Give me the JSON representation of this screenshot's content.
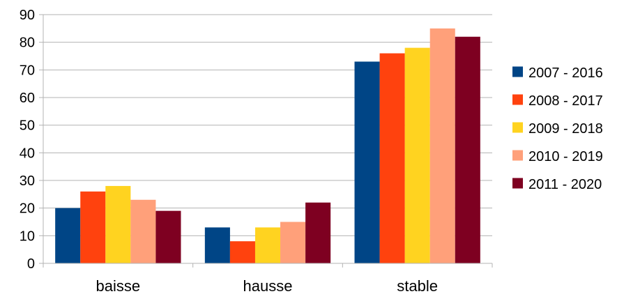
{
  "chart_data": {
    "type": "bar",
    "categories": [
      "baisse",
      "hausse",
      "stable"
    ],
    "series": [
      {
        "name": "2007 - 2016",
        "values": [
          20,
          13,
          73
        ],
        "color": "#004586"
      },
      {
        "name": "2008 - 2017",
        "values": [
          26,
          8,
          76
        ],
        "color": "#ff420e"
      },
      {
        "name": "2009 - 2018",
        "values": [
          28,
          13,
          78
        ],
        "color": "#ffd320"
      },
      {
        "name": "2010 - 2019",
        "values": [
          23,
          15,
          85
        ],
        "color": "#ffa07a"
      },
      {
        "name": "2011 - 2020",
        "values": [
          19,
          22,
          82
        ],
        "color": "#7e0021"
      }
    ],
    "ylim": [
      0,
      90
    ],
    "yticks": [
      0,
      10,
      20,
      30,
      40,
      50,
      60,
      70,
      80,
      90
    ],
    "grid": true,
    "legend": "right"
  }
}
